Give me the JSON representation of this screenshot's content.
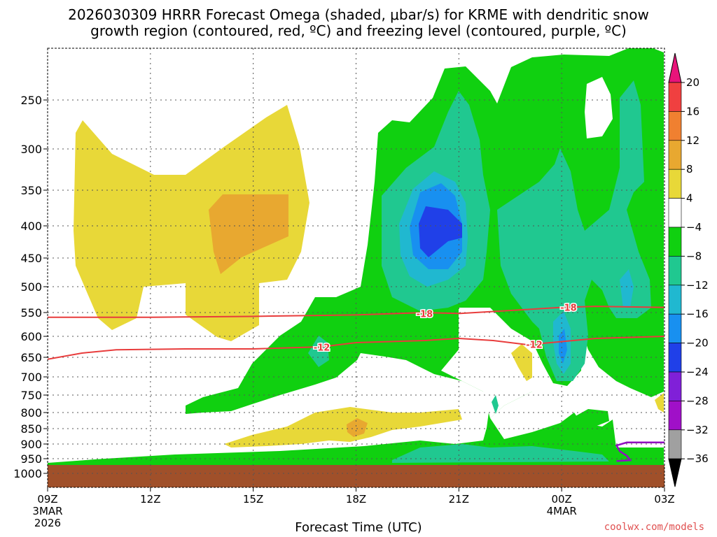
{
  "chart_data": {
    "type": "contour",
    "title": "2026030309 HRRR Forecast Omega (shaded, μbar/s) for KRME with dendritic snow growth region (contoured, red, °C) and freezing level (contoured, purple, °C)",
    "title_line1": "2026030309 HRRR Forecast Omega (shaded, μbar/s) for KRME with dendritic snow",
    "title_line2": "growth region (contoured, red, ºC) and freezing level (contoured, purple, ºC)",
    "xlabel": "Forecast Time (UTC)",
    "credit": "coolwx.com/models",
    "x_ticks": [
      {
        "hour": 0,
        "label": "09Z",
        "sub1": "3MAR",
        "sub2": "2026"
      },
      {
        "hour": 3,
        "label": "12Z",
        "sub1": "",
        "sub2": ""
      },
      {
        "hour": 6,
        "label": "15Z",
        "sub1": "",
        "sub2": ""
      },
      {
        "hour": 9,
        "label": "18Z",
        "sub1": "",
        "sub2": ""
      },
      {
        "hour": 12,
        "label": "21Z",
        "sub1": "",
        "sub2": ""
      },
      {
        "hour": 15,
        "label": "00Z",
        "sub1": "4MAR",
        "sub2": ""
      },
      {
        "hour": 18,
        "label": "03Z",
        "sub1": "",
        "sub2": ""
      }
    ],
    "y_ticks": [
      250,
      300,
      350,
      400,
      450,
      500,
      550,
      600,
      650,
      700,
      750,
      800,
      850,
      900,
      950,
      1000
    ],
    "colorbar": {
      "levels": [
        20,
        16,
        12,
        8,
        4,
        -4,
        -8,
        -12,
        -16,
        -20,
        -24,
        -28,
        -32,
        -36
      ],
      "colors": [
        "#e8147a",
        "#f04040",
        "#f08030",
        "#e8a830",
        "#e8d838",
        "#ffffff",
        "#10d010",
        "#20c890",
        "#20b8d0",
        "#1890f0",
        "#2040e8",
        "#8020d8",
        "#a010c8",
        "#a0a0a0",
        "#000000"
      ]
    },
    "contours": [
      {
        "label": "-18",
        "color": "#e83c3c",
        "points": [
          [
            0,
            560
          ],
          [
            3,
            560
          ],
          [
            6,
            558
          ],
          [
            9,
            555
          ],
          [
            11,
            550
          ],
          [
            12,
            552
          ],
          [
            13,
            548
          ],
          [
            15,
            540
          ],
          [
            16,
            538
          ],
          [
            18,
            540
          ]
        ]
      },
      {
        "label": "-12",
        "color": "#e83c3c",
        "points": [
          [
            0,
            655
          ],
          [
            1,
            640
          ],
          [
            2,
            632
          ],
          [
            4,
            630
          ],
          [
            6,
            630
          ],
          [
            8,
            625
          ],
          [
            9,
            615
          ],
          [
            11,
            610
          ],
          [
            12,
            605
          ],
          [
            13,
            610
          ],
          [
            14,
            620
          ],
          [
            16,
            605
          ],
          [
            18,
            600
          ]
        ]
      }
    ],
    "freezing_level": {
      "color": "#9010c0",
      "points": [
        [
          16.6,
          958
        ],
        [
          17,
          955
        ],
        [
          16.9,
          940
        ],
        [
          16.7,
          925
        ],
        [
          16.6,
          905
        ],
        [
          16.9,
          895
        ],
        [
          18,
          895
        ]
      ]
    },
    "ground_color": "#a0502a"
  }
}
